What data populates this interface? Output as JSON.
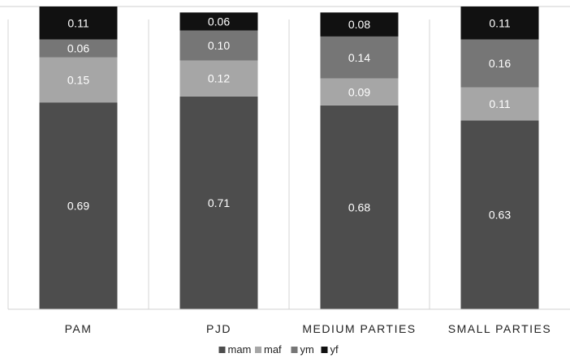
{
  "chart_data": {
    "type": "bar",
    "stacked": true,
    "categories": [
      "PAM",
      "PJD",
      "MEDIUM PARTIES",
      "SMALL PARTIES"
    ],
    "series": [
      {
        "name": "mam",
        "color": "#4d4d4d",
        "values": [
          0.69,
          0.71,
          0.68,
          0.63
        ],
        "labels": [
          "0.69",
          "0.71",
          "0.68",
          "0.63"
        ]
      },
      {
        "name": "maf",
        "color": "#a6a6a6",
        "values": [
          0.15,
          0.12,
          0.09,
          0.11
        ],
        "labels": [
          "0.15",
          "0.12",
          "0.09",
          "0.11"
        ]
      },
      {
        "name": "ym",
        "color": "#767676",
        "values": [
          0.06,
          0.1,
          0.14,
          0.16
        ],
        "labels": [
          "0.06",
          "0.10",
          "0.14",
          "0.16"
        ]
      },
      {
        "name": "yf",
        "color": "#111111",
        "values": [
          0.11,
          0.06,
          0.08,
          0.11
        ],
        "labels": [
          "0.11",
          "0.06",
          "0.08",
          "0.11"
        ]
      }
    ],
    "ylim": [
      0,
      1.01
    ],
    "grid": false,
    "legend_position": "bottom",
    "title": "",
    "xlabel": "",
    "ylabel": ""
  }
}
